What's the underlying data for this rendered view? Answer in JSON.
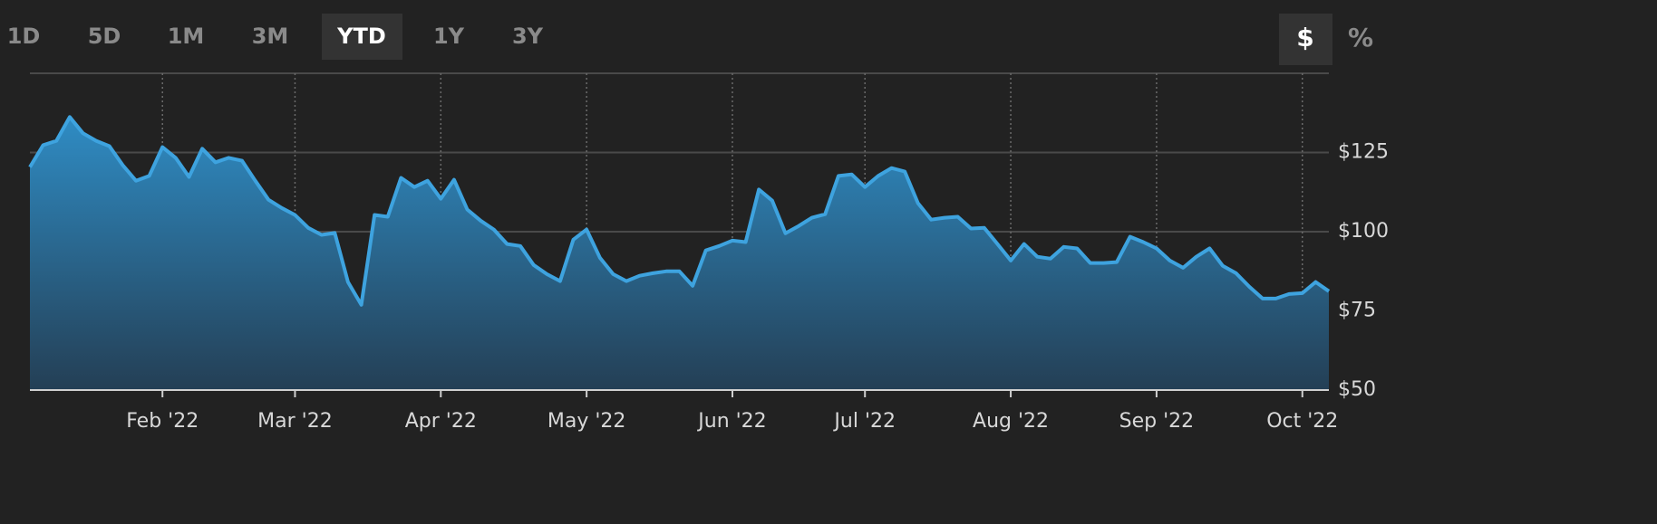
{
  "range_buttons": [
    {
      "label": "1D",
      "active": false
    },
    {
      "label": "5D",
      "active": false
    },
    {
      "label": "1M",
      "active": false
    },
    {
      "label": "3M",
      "active": false
    },
    {
      "label": "YTD",
      "active": true
    },
    {
      "label": "1Y",
      "active": false
    },
    {
      "label": "3Y",
      "active": false
    }
  ],
  "unit_buttons": [
    {
      "label": "$",
      "active": true
    },
    {
      "label": "%",
      "active": false
    }
  ],
  "chart_data": {
    "type": "area",
    "color": "#3ea3df",
    "categories": [
      null,
      null,
      null,
      null,
      null,
      null,
      null,
      null,
      null,
      null,
      "Feb '22",
      null,
      null,
      null,
      null,
      null,
      null,
      null,
      null,
      null,
      "Mar '22",
      null,
      null,
      null,
      null,
      null,
      null,
      null,
      null,
      null,
      null,
      "Apr '22",
      null,
      null,
      null,
      null,
      null,
      null,
      null,
      null,
      null,
      null,
      "May '22",
      null,
      null,
      null,
      null,
      null,
      null,
      null,
      null,
      null,
      null,
      "Jun '22",
      null,
      null,
      null,
      null,
      null,
      null,
      null,
      null,
      null,
      "Jul '22",
      null,
      null,
      null,
      null,
      null,
      null,
      null,
      null,
      null,
      null,
      "Aug '22",
      null,
      null,
      null,
      null,
      null,
      null,
      null,
      null,
      null,
      null,
      "Sep '22",
      null,
      null,
      null,
      null,
      null,
      null,
      null,
      null,
      null,
      null,
      "Oct '22",
      null,
      null
    ],
    "values": [
      120.4,
      127.3,
      128.7,
      136.2,
      131.1,
      128.7,
      127.0,
      121.0,
      116.1,
      117.6,
      126.7,
      123.3,
      117.3,
      126.2,
      121.9,
      123.3,
      122.4,
      116.1,
      110.1,
      107.5,
      105.3,
      101.2,
      99.0,
      99.6,
      84.1,
      76.9,
      105.3,
      104.7,
      117.0,
      114.1,
      116.1,
      110.4,
      116.4,
      107.0,
      103.5,
      100.7,
      96.1,
      95.5,
      89.5,
      86.6,
      84.4,
      97.5,
      100.7,
      91.8,
      86.6,
      84.4,
      86.1,
      86.9,
      87.5,
      87.5,
      82.9,
      94.1,
      95.5,
      97.2,
      96.7,
      113.3,
      109.8,
      99.5,
      101.8,
      104.4,
      105.5,
      117.6,
      118.1,
      114.1,
      117.6,
      120.1,
      119.0,
      109.0,
      103.8,
      104.4,
      104.7,
      101.0,
      101.2,
      96.1,
      90.9,
      96.1,
      92.1,
      91.5,
      95.2,
      94.7,
      90.1,
      90.1,
      90.4,
      98.4,
      96.7,
      94.7,
      90.9,
      88.6,
      92.1,
      94.7,
      89.2,
      86.9,
      82.6,
      78.9,
      78.9,
      80.3,
      80.6,
      84.1,
      81.2
    ],
    "ylim": [
      50,
      150
    ],
    "yticks": [
      {
        "value": 50,
        "label": "$50"
      },
      {
        "value": 75,
        "label": "$75"
      },
      {
        "value": 100,
        "label": "$100"
      },
      {
        "value": 125,
        "label": "$125"
      }
    ],
    "grid": true
  }
}
